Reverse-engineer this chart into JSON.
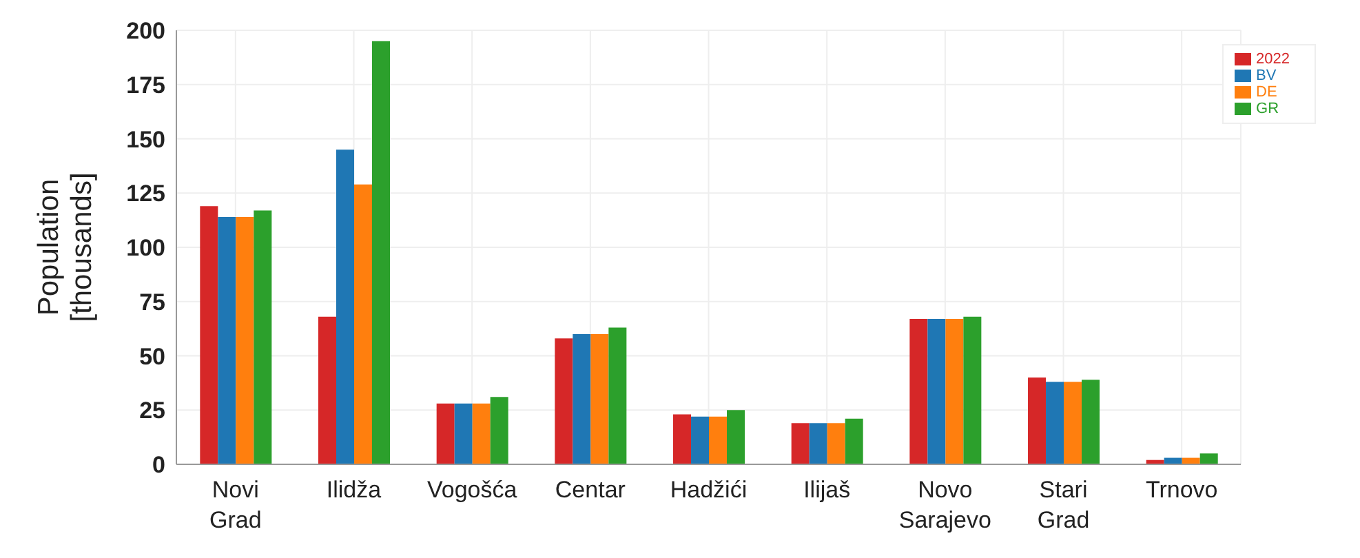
{
  "chart_data": {
    "type": "bar",
    "ylabel": "Population [thousands]",
    "categories": [
      "Novi Grad",
      "Ilidža",
      "Vogošća",
      "Centar",
      "Hadžići",
      "Ilijaš",
      "Novo Sarajevo",
      "Stari Grad",
      "Trnovo"
    ],
    "series": [
      {
        "name": "2022",
        "color": "#d62728",
        "values": [
          119,
          68,
          28,
          58,
          23,
          19,
          67,
          40,
          2
        ]
      },
      {
        "name": "BV",
        "color": "#1f77b4",
        "values": [
          114,
          145,
          28,
          60,
          22,
          19,
          67,
          38,
          3
        ]
      },
      {
        "name": "DE",
        "color": "#ff7f0e",
        "values": [
          114,
          129,
          28,
          60,
          22,
          19,
          67,
          38,
          3
        ]
      },
      {
        "name": "GR",
        "color": "#2ca02c",
        "values": [
          117,
          195,
          31,
          63,
          25,
          21,
          68,
          39,
          5
        ]
      }
    ],
    "ylim": [
      0,
      200
    ],
    "yticks": [
      0,
      25,
      50,
      75,
      100,
      125,
      150,
      175,
      200
    ],
    "grid": true,
    "legend": "top right"
  }
}
